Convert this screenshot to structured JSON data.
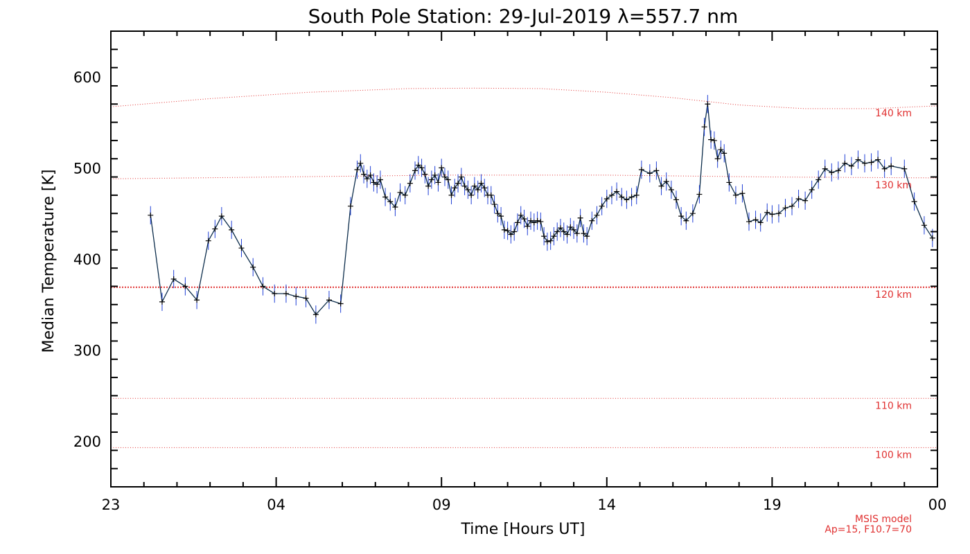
{
  "chart_data": {
    "type": "line",
    "title": "South Pole Station: 29-Jul-2019 λ=557.7 nm",
    "xlabel": "Time [Hours UT]",
    "ylabel": "Median Temperature [K]",
    "xlim": [
      23,
      48
    ],
    "ylim": [
      150,
      650
    ],
    "x_ticks": [
      {
        "value": 23,
        "label": "23"
      },
      {
        "value": 28,
        "label": "04"
      },
      {
        "value": 33,
        "label": "09"
      },
      {
        "value": 38,
        "label": "14"
      },
      {
        "value": 43,
        "label": "19"
      },
      {
        "value": 48,
        "label": "00"
      }
    ],
    "y_ticks": [
      200,
      300,
      400,
      500,
      600
    ],
    "x_minor_step": 1,
    "y_minor_step": 20,
    "colors": {
      "series": "#0a2b4a",
      "error_bars": "#1f3fd6",
      "markers": "#000000",
      "reference": "#e03030"
    },
    "reference_lines": [
      {
        "label": "140 km",
        "points": [
          [
            23,
            567
          ],
          [
            26,
            576
          ],
          [
            29,
            583
          ],
          [
            32,
            587
          ],
          [
            34,
            587.5
          ],
          [
            36,
            587
          ],
          [
            38,
            583
          ],
          [
            40,
            577
          ],
          [
            42,
            569
          ],
          [
            44,
            565
          ],
          [
            46,
            565
          ],
          [
            48,
            568
          ]
        ]
      },
      {
        "label": "130 km",
        "points": [
          [
            23,
            488
          ],
          [
            28,
            490
          ],
          [
            33,
            492
          ],
          [
            38,
            492
          ],
          [
            43,
            490
          ],
          [
            48,
            489
          ]
        ]
      },
      {
        "label": "120 km",
        "points": [
          [
            23,
            369
          ],
          [
            48,
            369
          ]
        ],
        "style": "dense"
      },
      {
        "label": "110 km",
        "points": [
          [
            23,
            247
          ],
          [
            48,
            247
          ]
        ]
      },
      {
        "label": "100 km",
        "points": [
          [
            23,
            193
          ],
          [
            48,
            193
          ]
        ]
      }
    ],
    "annotation": [
      "MSIS model",
      "Ap=15, F10.7=70"
    ],
    "series": [
      {
        "err": 10,
        "points": [
          [
            24.2,
            448
          ],
          [
            24.55,
            353
          ],
          [
            24.9,
            378
          ],
          [
            25.25,
            370
          ],
          [
            25.6,
            355
          ],
          [
            25.95,
            420
          ],
          [
            26.15,
            433
          ],
          [
            26.35,
            447
          ],
          [
            26.65,
            432
          ],
          [
            26.95,
            412
          ],
          [
            27.3,
            391
          ],
          [
            27.6,
            370
          ],
          [
            27.95,
            362
          ],
          [
            28.3,
            362
          ],
          [
            28.6,
            359
          ],
          [
            28.9,
            357
          ],
          [
            29.2,
            339
          ],
          [
            29.6,
            355
          ],
          [
            29.95,
            351
          ],
          [
            30.25,
            458
          ],
          [
            30.45,
            498
          ],
          [
            30.55,
            505
          ],
          [
            30.65,
            493
          ],
          [
            30.75,
            488
          ],
          [
            30.85,
            492
          ],
          [
            30.95,
            484
          ],
          [
            31.05,
            482
          ],
          [
            31.15,
            487
          ],
          [
            31.3,
            468
          ],
          [
            31.45,
            463
          ],
          [
            31.6,
            457
          ],
          [
            31.75,
            473
          ],
          [
            31.9,
            470
          ],
          [
            32.05,
            483
          ],
          [
            32.2,
            497
          ],
          [
            32.3,
            503
          ],
          [
            32.4,
            500
          ],
          [
            32.5,
            493
          ],
          [
            32.6,
            480
          ],
          [
            32.7,
            487
          ],
          [
            32.8,
            492
          ],
          [
            32.9,
            484
          ],
          [
            33.0,
            500
          ],
          [
            33.1,
            490
          ],
          [
            33.2,
            487
          ],
          [
            33.3,
            470
          ],
          [
            33.4,
            478
          ],
          [
            33.5,
            483
          ],
          [
            33.6,
            490
          ],
          [
            33.7,
            480
          ],
          [
            33.8,
            476
          ],
          [
            33.9,
            470
          ],
          [
            34.0,
            480
          ],
          [
            34.1,
            476
          ],
          [
            34.2,
            483
          ],
          [
            34.3,
            478
          ],
          [
            34.4,
            470
          ],
          [
            34.5,
            470
          ],
          [
            34.6,
            460
          ],
          [
            34.7,
            450
          ],
          [
            34.8,
            447
          ],
          [
            34.9,
            432
          ],
          [
            35.0,
            431
          ],
          [
            35.1,
            427
          ],
          [
            35.2,
            430
          ],
          [
            35.3,
            440
          ],
          [
            35.4,
            448
          ],
          [
            35.5,
            444
          ],
          [
            35.6,
            436
          ],
          [
            35.7,
            442
          ],
          [
            35.8,
            440
          ],
          [
            35.9,
            442
          ],
          [
            36.0,
            441
          ],
          [
            36.1,
            425
          ],
          [
            36.2,
            419
          ],
          [
            36.3,
            420
          ],
          [
            36.4,
            425
          ],
          [
            36.5,
            430
          ],
          [
            36.6,
            434
          ],
          [
            36.7,
            430
          ],
          [
            36.8,
            427
          ],
          [
            36.9,
            435
          ],
          [
            37.0,
            432
          ],
          [
            37.1,
            428
          ],
          [
            37.2,
            445
          ],
          [
            37.3,
            428
          ],
          [
            37.4,
            425
          ],
          [
            37.55,
            442
          ],
          [
            37.7,
            448
          ],
          [
            37.85,
            458
          ],
          [
            38.0,
            466
          ],
          [
            38.15,
            470
          ],
          [
            38.3,
            474
          ],
          [
            38.45,
            468
          ],
          [
            38.6,
            465
          ],
          [
            38.75,
            468
          ],
          [
            38.9,
            470
          ],
          [
            39.05,
            498
          ],
          [
            39.3,
            494
          ],
          [
            39.5,
            497
          ],
          [
            39.65,
            480
          ],
          [
            39.8,
            485
          ],
          [
            39.95,
            476
          ],
          [
            40.1,
            465
          ],
          [
            40.25,
            447
          ],
          [
            40.4,
            442
          ],
          [
            40.6,
            450
          ],
          [
            40.8,
            471
          ],
          [
            40.95,
            545
          ],
          [
            41.05,
            570
          ],
          [
            41.15,
            531
          ],
          [
            41.25,
            530
          ],
          [
            41.35,
            510
          ],
          [
            41.45,
            520
          ],
          [
            41.55,
            516
          ],
          [
            41.7,
            484
          ],
          [
            41.9,
            470
          ],
          [
            42.1,
            472
          ],
          [
            42.3,
            441
          ],
          [
            42.5,
            443
          ],
          [
            42.65,
            440
          ],
          [
            42.85,
            451
          ],
          [
            43.0,
            449
          ],
          [
            43.2,
            450
          ],
          [
            43.4,
            456
          ],
          [
            43.6,
            458
          ],
          [
            43.8,
            466
          ],
          [
            44.0,
            464
          ],
          [
            44.2,
            476
          ],
          [
            44.4,
            487
          ],
          [
            44.6,
            499
          ],
          [
            44.8,
            495
          ],
          [
            45.0,
            497
          ],
          [
            45.2,
            505
          ],
          [
            45.4,
            502
          ],
          [
            45.6,
            509
          ],
          [
            45.8,
            505
          ],
          [
            46.0,
            506
          ],
          [
            46.2,
            509
          ],
          [
            46.4,
            499
          ],
          [
            46.6,
            502
          ],
          [
            47.0,
            499
          ],
          [
            47.3,
            463
          ],
          [
            47.6,
            437
          ],
          [
            47.85,
            423
          ]
        ]
      }
    ]
  }
}
